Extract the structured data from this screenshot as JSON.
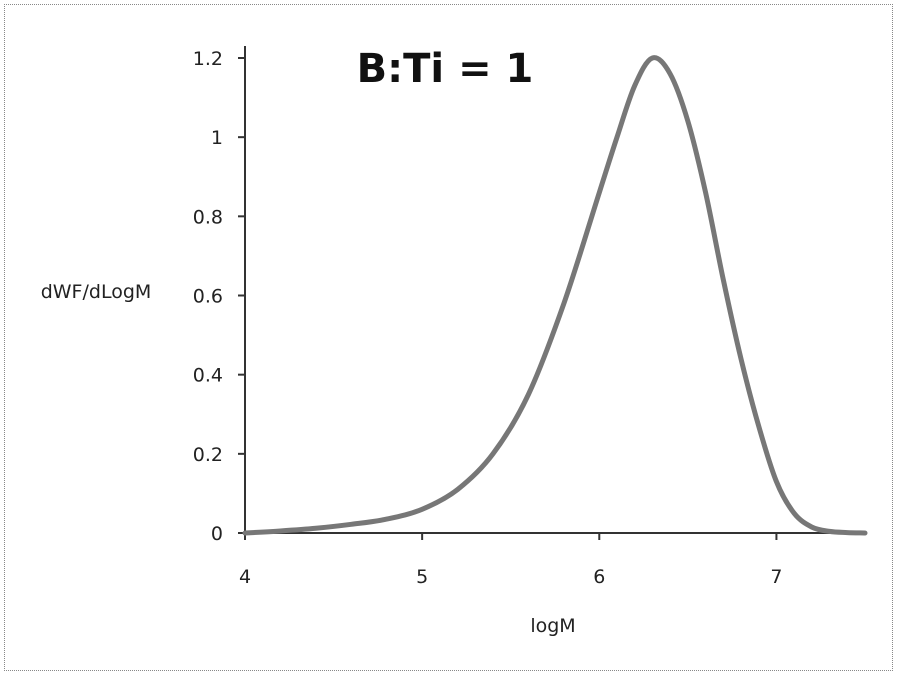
{
  "chart_data": {
    "type": "line",
    "title": "B:Ti = 1",
    "xlabel": "logM",
    "ylabel": "dWF/dLogM",
    "xlim": [
      4,
      7.5
    ],
    "ylim": [
      0,
      1.2
    ],
    "xticks": [
      4,
      5,
      6,
      7
    ],
    "yticks": [
      0,
      0.2,
      0.4,
      0.6,
      0.8,
      1,
      1.2
    ],
    "xtick_labels": [
      "4",
      "5",
      "6",
      "7"
    ],
    "ytick_labels": [
      "0",
      "0.2",
      "0.4",
      "0.6",
      "0.8",
      "1",
      "1.2"
    ],
    "grid": false,
    "legend": "none",
    "series": [
      {
        "color": "#777777",
        "x": [
          4.0,
          4.2,
          4.4,
          4.6,
          4.8,
          5.0,
          5.2,
          5.4,
          5.6,
          5.8,
          6.0,
          6.1,
          6.2,
          6.3,
          6.4,
          6.5,
          6.6,
          6.7,
          6.8,
          6.9,
          7.0,
          7.1,
          7.2,
          7.3,
          7.4,
          7.5
        ],
        "y": [
          0.0,
          0.005,
          0.012,
          0.022,
          0.035,
          0.06,
          0.11,
          0.2,
          0.35,
          0.58,
          0.86,
          1.0,
          1.13,
          1.2,
          1.16,
          1.04,
          0.86,
          0.64,
          0.44,
          0.27,
          0.13,
          0.05,
          0.015,
          0.004,
          0.001,
          0.0
        ]
      }
    ]
  }
}
